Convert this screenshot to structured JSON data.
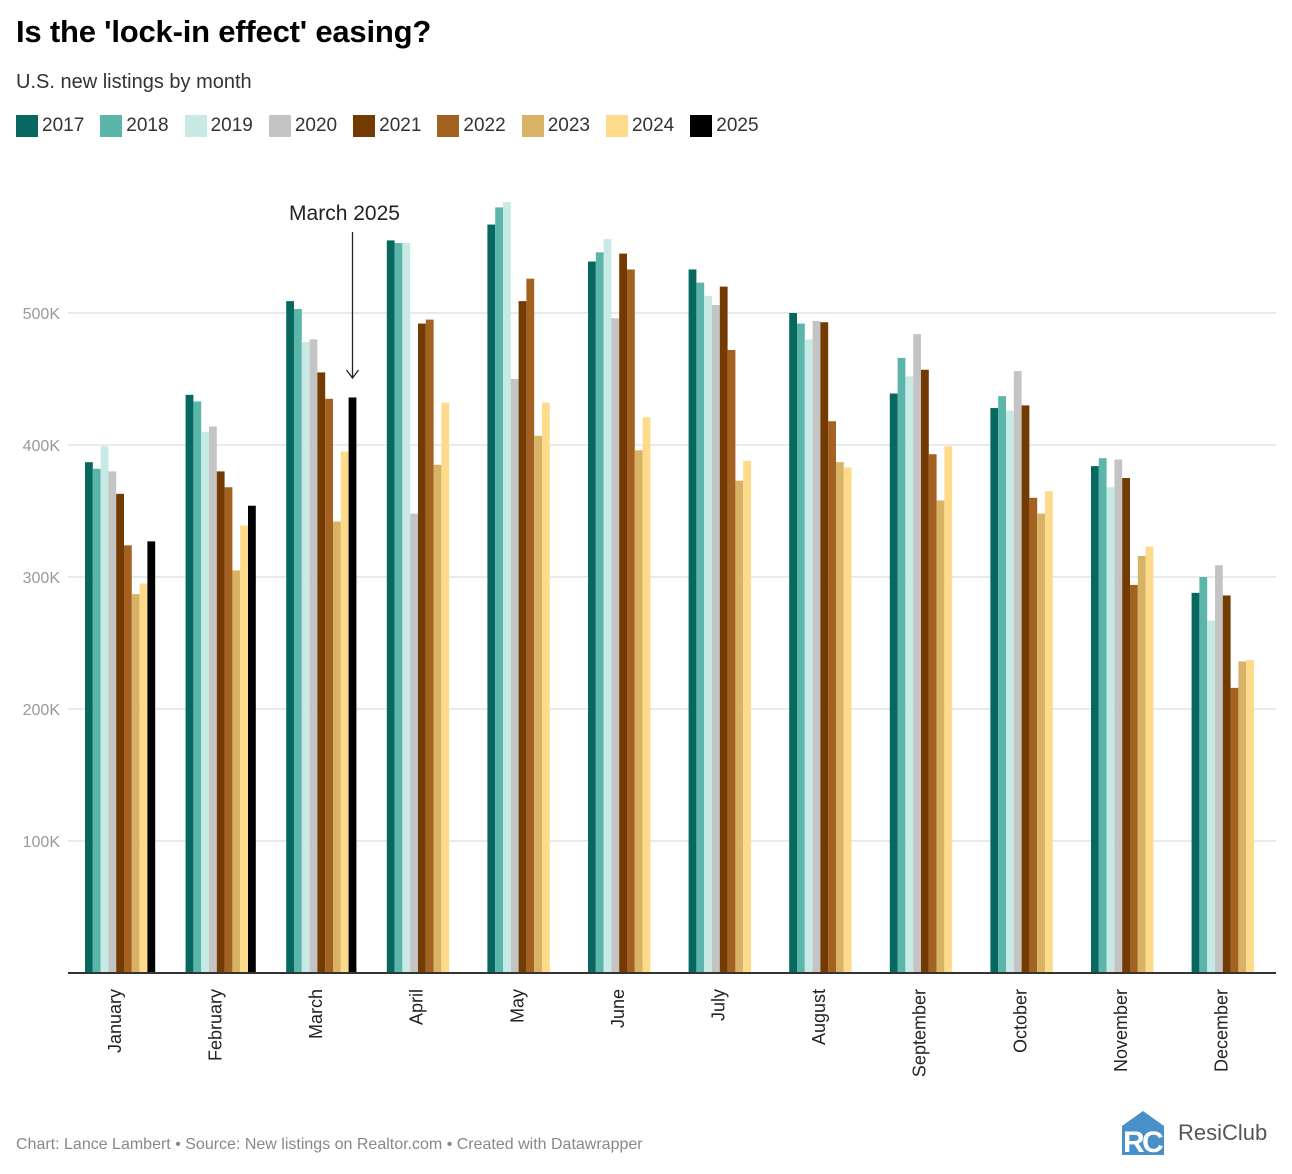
{
  "header": {
    "title": "Is the 'lock-in effect' easing?",
    "subtitle": "U.S. new listings by month"
  },
  "legend": [
    {
      "label": "2017",
      "color": "#076860"
    },
    {
      "label": "2018",
      "color": "#5cb5ab"
    },
    {
      "label": "2019",
      "color": "#c8eae4"
    },
    {
      "label": "2020",
      "color": "#c4c4c4"
    },
    {
      "label": "2021",
      "color": "#733b02"
    },
    {
      "label": "2022",
      "color": "#a36222"
    },
    {
      "label": "2023",
      "color": "#d9b365"
    },
    {
      "label": "2024",
      "color": "#fddb8b"
    },
    {
      "label": "2025",
      "color": "#000000"
    }
  ],
  "chart_data": {
    "type": "bar",
    "title": "Is the 'lock-in effect' easing?",
    "subtitle": "U.S. new listings by month",
    "xlabel": "",
    "ylabel": "",
    "ylim": [
      0,
      600000
    ],
    "yticks": [
      100000,
      200000,
      300000,
      400000,
      500000
    ],
    "ytick_labels": [
      "100K",
      "200K",
      "300K",
      "400K",
      "500K"
    ],
    "grid": true,
    "legend_position": "top-left",
    "categories": [
      "January",
      "February",
      "March",
      "April",
      "May",
      "June",
      "July",
      "August",
      "September",
      "October",
      "November",
      "December"
    ],
    "series": [
      {
        "name": "2017",
        "values": [
          387000,
          438000,
          509000,
          555000,
          567000,
          539000,
          533000,
          500000,
          439000,
          428000,
          384000,
          288000
        ]
      },
      {
        "name": "2018",
        "values": [
          382000,
          433000,
          503000,
          553000,
          580000,
          546000,
          523000,
          492000,
          466000,
          437000,
          390000,
          300000
        ]
      },
      {
        "name": "2019",
        "values": [
          399000,
          410000,
          478000,
          553000,
          584000,
          556000,
          513000,
          480000,
          452000,
          426000,
          368000,
          267000
        ]
      },
      {
        "name": "2020",
        "values": [
          380000,
          414000,
          480000,
          348000,
          450000,
          496000,
          506000,
          494000,
          484000,
          456000,
          389000,
          309000
        ]
      },
      {
        "name": "2021",
        "values": [
          363000,
          380000,
          455000,
          492000,
          509000,
          545000,
          520000,
          493000,
          457000,
          430000,
          375000,
          286000
        ]
      },
      {
        "name": "2022",
        "values": [
          324000,
          368000,
          435000,
          495000,
          526000,
          533000,
          472000,
          418000,
          393000,
          360000,
          294000,
          216000
        ]
      },
      {
        "name": "2023",
        "values": [
          287000,
          305000,
          342000,
          385000,
          407000,
          396000,
          373000,
          387000,
          358000,
          348000,
          316000,
          236000
        ]
      },
      {
        "name": "2024",
        "values": [
          295000,
          339000,
          395000,
          432000,
          432000,
          421000,
          388000,
          383000,
          399000,
          365000,
          323000,
          237000
        ]
      },
      {
        "name": "2025",
        "values": [
          327000,
          354000,
          436000,
          null,
          null,
          null,
          null,
          null,
          null,
          null,
          null,
          null
        ]
      }
    ],
    "annotations": [
      {
        "text": "March 2025",
        "target_category": "March",
        "target_series": "2025"
      }
    ]
  },
  "footer": {
    "credit": "Chart: Lance Lambert • Source: New listings on Realtor.com • Created with Datawrapper",
    "logo_text": "ResiClub",
    "logo_color": "#4a90c8"
  }
}
